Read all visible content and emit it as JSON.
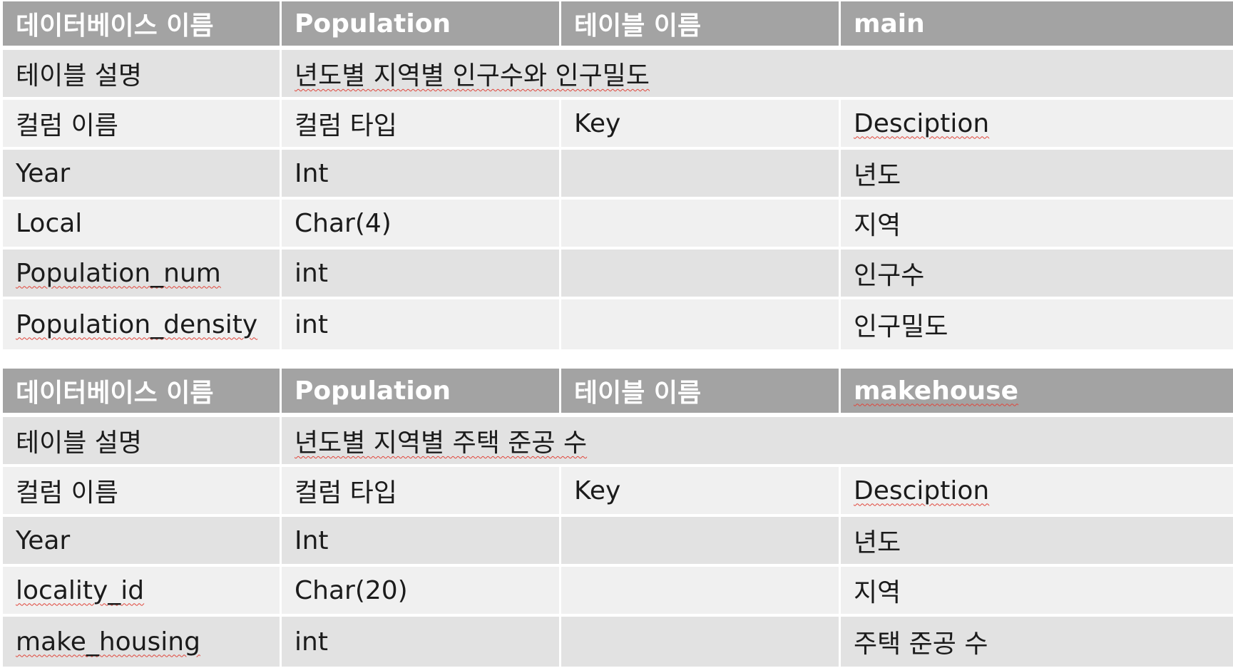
{
  "tables": [
    {
      "header": [
        "데이터베이스 이름",
        "Population",
        "테이블 이름",
        "main"
      ],
      "description_label": "테이블 설명",
      "description": "년도별 지역별 인구수와 인구밀도",
      "columns_header": [
        "컬럼 이름",
        "컬럼 타입",
        "Key",
        "Desciption"
      ],
      "rows": [
        [
          "Year",
          "Int",
          "",
          "년도"
        ],
        [
          "Local",
          "Char(4)",
          "",
          "지역"
        ],
        [
          "Population_num",
          "int",
          "",
          "인구수"
        ],
        [
          "Population_density",
          "int",
          "",
          "인구밀도"
        ]
      ]
    },
    {
      "header": [
        "데이터베이스 이름",
        "Population",
        "테이블 이름",
        "makehouse"
      ],
      "description_label": "테이블 설명",
      "description": "년도별 지역별 주택 준공 수",
      "columns_header": [
        "컬럼 이름",
        "컬럼 타입",
        "Key",
        "Desciption"
      ],
      "rows": [
        [
          "Year",
          "Int",
          "",
          "년도"
        ],
        [
          "locality_id",
          "Char(20)",
          "",
          "지역"
        ],
        [
          "make_housing",
          "int",
          "",
          "주택 준공 수"
        ]
      ]
    }
  ]
}
